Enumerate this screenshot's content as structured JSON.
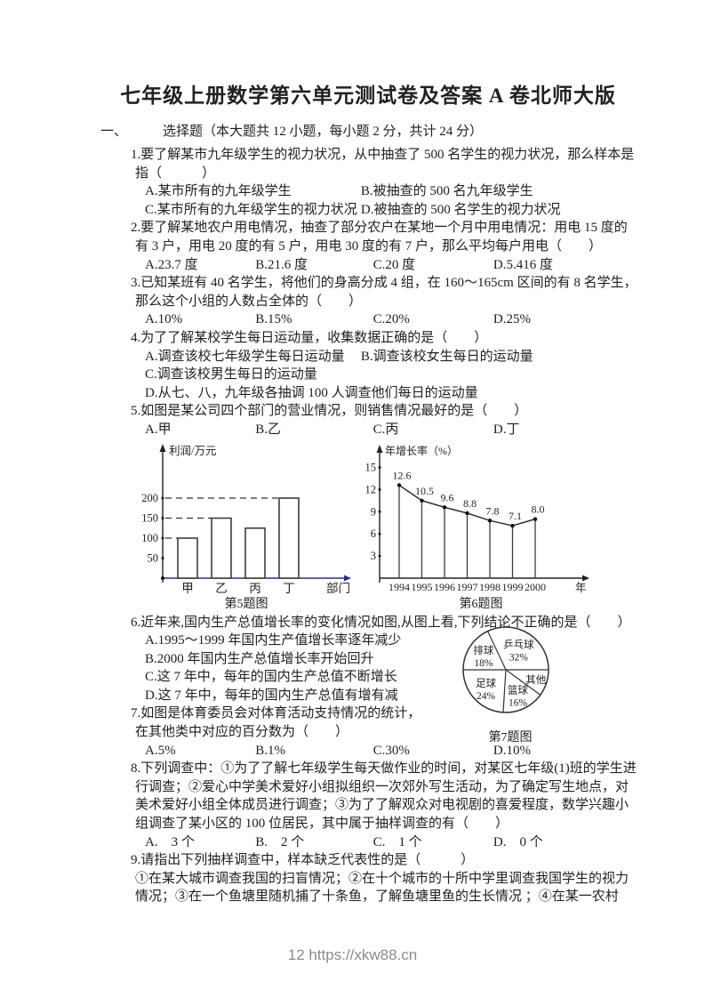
{
  "page": {
    "title": "七年级上册数学第六单元测试卷及答案 A 卷北师大版",
    "section_no": "一、",
    "section_title": "选择题（本大题共 12 小题，每小题 2 分，共计 24 分）",
    "footer": "12 https://xkw88.cn"
  },
  "questions": [
    {
      "num": "1.",
      "stem": [
        "要了解某市九年级学生的视力状况，从中抽查了 500 名学生的视力状况，那么样本是",
        "指（　　　）"
      ],
      "option_rows": [
        {
          "cols": 2,
          "items": [
            "A.某市所有的九年级学生",
            "B.被抽查的 500 名九年级学生"
          ]
        },
        {
          "cols": 2,
          "items": [
            "C.某市所有的九年级学生的视力状况",
            "D.被抽查的 500 名学生的视力状况"
          ]
        }
      ]
    },
    {
      "num": "2.",
      "stem": [
        "要了解某地农户用电情况，抽查了部分农户在某地一个月中用电情况：用电 15 度的",
        "有 3 户，用电 20 度的有 5 户，用电 30 度的有 7 户，那么平均每户用电（　　）"
      ],
      "option_rows": [
        {
          "cols": 4,
          "items": [
            "A.23.7 度",
            "B.21.6 度",
            "C.20 度",
            "D.5.416 度"
          ]
        }
      ]
    },
    {
      "num": "3.",
      "stem": [
        "已知某班有 40 名学生，将他们的身高分成 4 组，在 160～165cm 区间的有 8 名学生，",
        "那么这个小组的人数占全体的（　　）"
      ],
      "option_rows": [
        {
          "cols": 4,
          "items": [
            "A.10%",
            "B.15%",
            "C.20%",
            "D.25%"
          ]
        }
      ]
    },
    {
      "num": "4.",
      "stem": [
        "为了了解某校学生每日运动量，收集数据正确的是（　　）"
      ],
      "option_rows": [
        {
          "cols": 2,
          "items": [
            "A.调查该校七年级学生每日运动量",
            "B.调查该校女生每日的运动量"
          ]
        },
        {
          "cols": 1,
          "items": [
            "C.调查该校男生每日的运动量"
          ]
        },
        {
          "cols": 1,
          "items": [
            "D.从七、八，九年级各抽调 100 人调查他们每日的运动量"
          ]
        }
      ]
    },
    {
      "num": "5.",
      "stem": [
        "如图是某公司四个部门的营业情况，则销售情况最好的是（　　）"
      ],
      "option_rows": [
        {
          "cols": 4,
          "items": [
            "A.甲",
            "B.乙",
            "C.丙",
            "D.丁"
          ]
        }
      ]
    },
    {
      "num": "6.",
      "stem": [
        "近年来,国内生产总值增长率的变化情况如图,从图上看,下列结论不正确的是（　　）"
      ],
      "option_rows": [
        {
          "cols": 1,
          "items": [
            "A.1995～1999 年国内生产值增长率逐年减少"
          ]
        },
        {
          "cols": 1,
          "items": [
            "B.2000 年国内生产总值增长率开始回升"
          ]
        },
        {
          "cols": 1,
          "items": [
            "C.这 7 年中，每年的国内生产总值不断增长"
          ]
        },
        {
          "cols": 1,
          "items": [
            "D.这 7 年中，每年的国内生产总值有增有减"
          ]
        }
      ]
    },
    {
      "num": "7.",
      "stem": [
        "如图是体育委员会对体育活动支持情况的统计，",
        "在其他类中对应的百分数为（　　）"
      ],
      "option_rows": [
        {
          "cols": 4,
          "items": [
            "A.5%",
            "B.1%",
            "C.30%",
            "D.10%"
          ]
        }
      ]
    },
    {
      "num": "8.",
      "stem": [
        "下列调查中：①为了了解七年级学生每天做作业的时间，对某区七年级(1)班的学生进",
        "行调查；②爱心中学美术爱好小组拟组织一次郊外写生活动，为了确定写生地点，对",
        "美术爱好小组全体成员进行调查；③为了了解观众对电视剧的喜爱程度，数学兴趣小",
        "组调查了某小区的 100 位居民，其中属于抽样调查的有（　　）"
      ],
      "option_rows": [
        {
          "cols": 4,
          "items": [
            "A.　3 个",
            "B.　2 个",
            "C.　1 个",
            "D.　0 个"
          ]
        }
      ]
    },
    {
      "num": "9.",
      "stem": [
        "请指出下列抽样调查中，样本缺乏代表性的是（　　　）",
        "①在某大城市调查我国的扫盲情况；②在十个城市的十所中学里调查我国学生的视力",
        "情况；③在一个鱼塘里随机捕了十条鱼，了解鱼塘里鱼的生长情况 ；④在某一农村"
      ],
      "option_rows": []
    }
  ],
  "chart_data": [
    {
      "type": "bar",
      "caption": "第5题图",
      "ylabel": "利润/万元",
      "xlabel": "部门",
      "categories": [
        "甲",
        "乙",
        "丙",
        "丁"
      ],
      "values": [
        100,
        150,
        125,
        200
      ],
      "yticks": [
        50,
        100,
        150,
        200
      ],
      "ylim": [
        0,
        300
      ],
      "dashed_levels": [
        100,
        150,
        200
      ],
      "grid": false,
      "axis_x_color": "#2b2f84",
      "bar_stroke": "#3d3d3d"
    },
    {
      "type": "line",
      "caption": "第6题图",
      "ylabel": "年增长率（%）",
      "xlabel": "年",
      "x": [
        "1994",
        "1995",
        "1996",
        "1997",
        "1998",
        "1999",
        "2000"
      ],
      "values": [
        12.6,
        10.5,
        9.6,
        8.8,
        7.8,
        7.1,
        8.0
      ],
      "point_labels": [
        "12.6",
        "10.5",
        "9.6",
        "8.8",
        "7.8",
        "7.1",
        "8.0"
      ],
      "yticks": [
        3,
        6,
        9,
        12,
        15
      ],
      "ylim": [
        0,
        16.5
      ],
      "grid": false
    },
    {
      "type": "pie",
      "caption": "第7题图",
      "start_angle_deg": 180,
      "direction": "clockwise",
      "slices": [
        {
          "label": "排球",
          "pct": 18,
          "pct_label": "18%"
        },
        {
          "label": "乒乓球",
          "pct": 32,
          "pct_label": "32%"
        },
        {
          "label": "其他",
          "pct": 10,
          "pct_label": ""
        },
        {
          "label": "篮球",
          "pct": 16,
          "pct_label": "16%"
        },
        {
          "label": "足球",
          "pct": 24,
          "pct_label": "24%"
        }
      ]
    }
  ]
}
